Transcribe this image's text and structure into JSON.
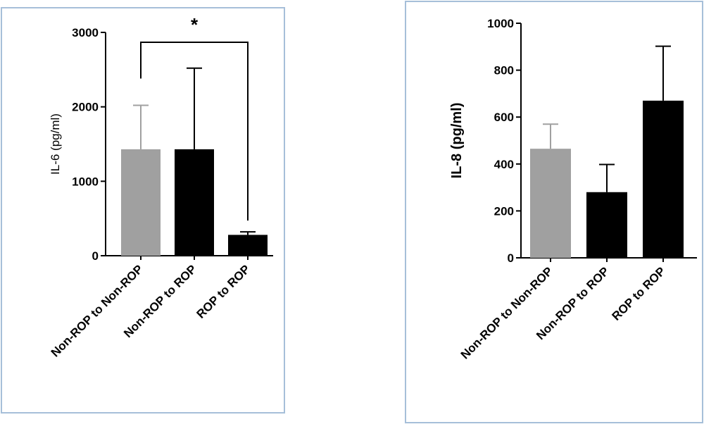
{
  "chart_data": [
    {
      "type": "bar",
      "categories": [
        "Non-ROP to Non-ROP",
        "Non-ROP to ROP",
        "ROP to ROP"
      ],
      "values": [
        1430,
        1430,
        280
      ],
      "error": [
        590,
        1090,
        40
      ],
      "colors": [
        "#a0a0a0",
        "#000000",
        "#000000"
      ],
      "ylabel": "IL-6 (pg/ml)",
      "ylim": [
        0,
        3000
      ],
      "yticks": [
        "0",
        "1000",
        "2000",
        "3000"
      ],
      "significance": {
        "label": "*",
        "between": [
          0,
          2
        ]
      }
    },
    {
      "type": "bar",
      "categories": [
        "Non-ROP to Non-ROP",
        "Non-ROP to ROP",
        "ROP to ROP"
      ],
      "values": [
        465,
        280,
        670
      ],
      "error": [
        105,
        118,
        232
      ],
      "colors": [
        "#a0a0a0",
        "#000000",
        "#000000"
      ],
      "ylabel": "IL-8 (pg/ml)",
      "ylim": [
        0,
        1000
      ],
      "yticks": [
        "0",
        "200",
        "400",
        "600",
        "800",
        "1000"
      ]
    }
  ]
}
